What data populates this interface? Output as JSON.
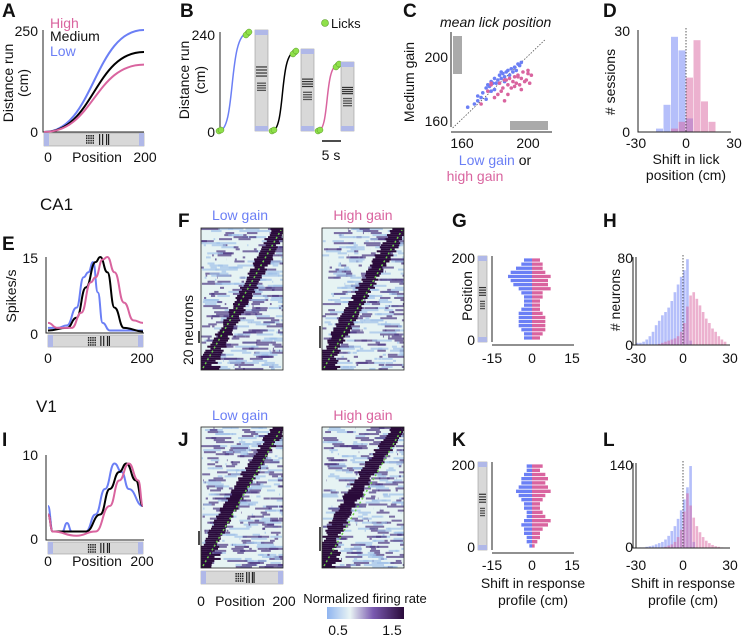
{
  "colors": {
    "low": "#6b7ff5",
    "medium": "#000000",
    "high": "#d9649f",
    "lick": "#8fe04a",
    "track": "#d8d8d8",
    "heat_dark": "#2a0a3a",
    "heat_light": "#e6f3f3"
  },
  "panels": {
    "A": {
      "label": "A",
      "legend": [
        "High",
        "Medium",
        "Low"
      ],
      "ylabel1": "Distance run",
      "ylabel2": "(cm)",
      "yticks": [
        "250",
        "0"
      ],
      "xticks": [
        "0",
        "200"
      ],
      "xlabel": "Position"
    },
    "B": {
      "label": "B",
      "legend": "Licks",
      "ylabel1": "Distance run",
      "ylabel2": "(cm)",
      "yticks": [
        "240",
        "0"
      ],
      "scalebar": "5 s"
    },
    "C": {
      "label": "C",
      "title": "mean lick position",
      "ylabel": "Medium gain",
      "yticks": [
        "200",
        "160"
      ],
      "xticks": [
        "160",
        "200"
      ],
      "xlabel_low": "Low gain",
      "xlabel_or": " or",
      "xlabel_high": "high gain"
    },
    "D": {
      "label": "D",
      "ylabel": "# sessions",
      "yticks": [
        "30",
        "0"
      ],
      "xticks": [
        "-30",
        "0",
        "30"
      ],
      "xlabel1": "Shift in lick",
      "xlabel2": "position (cm)"
    },
    "E": {
      "label": "E",
      "region": "CA1",
      "ylabel": "Spikes/s",
      "yticks": [
        "15",
        "0"
      ],
      "xticks": [
        "0",
        "200"
      ]
    },
    "F": {
      "label": "F",
      "title_low": "Low gain",
      "title_high": "High gain",
      "ylabel": "20 neurons"
    },
    "G": {
      "label": "G",
      "ylabel": "Position",
      "yticks": [
        "200",
        "0"
      ],
      "xticks": [
        "-15",
        "0",
        "15"
      ]
    },
    "H": {
      "label": "H",
      "ylabel": "# neurons",
      "yticks": [
        "80",
        "0"
      ],
      "xticks": [
        "-30",
        "0",
        "30"
      ]
    },
    "I": {
      "label": "I",
      "region": "V1",
      "yticks": [
        "10",
        "0"
      ],
      "xticks": [
        "0",
        "200"
      ],
      "xlabel": "Position"
    },
    "J": {
      "label": "J",
      "title_low": "Low gain",
      "title_high": "High gain",
      "xticks": [
        "0",
        "200"
      ],
      "xlabel": "Position",
      "colorbar_label": "Normalized firing rate",
      "colorbar_ticks": [
        "0.5",
        "1.5"
      ]
    },
    "K": {
      "label": "K",
      "yticks": [
        "200",
        "0"
      ],
      "xticks": [
        "-15",
        "0",
        "15"
      ],
      "xlabel1": "Shift in response",
      "xlabel2": "profile (cm)"
    },
    "L": {
      "label": "L",
      "yticks": [
        "140",
        "0"
      ],
      "xticks": [
        "-30",
        "0",
        "30"
      ],
      "xlabel1": "Shift in response",
      "xlabel2": "profile (cm)"
    }
  },
  "chart_data": [
    {
      "panel": "A",
      "type": "line",
      "xlabel": "Position",
      "ylabel": "Distance run (cm)",
      "xlim": [
        0,
        200
      ],
      "ylim": [
        0,
        250
      ],
      "series": [
        {
          "name": "Low",
          "x": [
            0,
            200
          ],
          "y": [
            0,
            250
          ]
        },
        {
          "name": "Medium",
          "x": [
            0,
            200
          ],
          "y": [
            0,
            196
          ]
        },
        {
          "name": "High",
          "x": [
            0,
            200
          ],
          "y": [
            0,
            165
          ]
        }
      ]
    },
    {
      "panel": "B",
      "type": "line",
      "ylabel": "Distance run (cm)",
      "ylim": [
        0,
        240
      ],
      "series": [
        {
          "name": "Low",
          "end": 240
        },
        {
          "name": "Medium",
          "end": 190
        },
        {
          "name": "High",
          "end": 160
        }
      ]
    },
    {
      "panel": "C",
      "type": "scatter",
      "title": "mean lick position",
      "xlabel": "Low gain or high gain",
      "ylabel": "Medium gain",
      "xlim": [
        152,
        212
      ],
      "ylim": [
        156,
        212
      ],
      "series": [
        {
          "name": "Low gain",
          "x": [
            164,
            168,
            170,
            172,
            173,
            175,
            176,
            177,
            178,
            179,
            180,
            181,
            182,
            183,
            184,
            185,
            186,
            187,
            188,
            189,
            190,
            191,
            192,
            193,
            194,
            195,
            196,
            175,
            180,
            186,
            170,
            178,
            184
          ],
          "y": [
            168,
            170,
            172,
            174,
            177,
            180,
            182,
            181,
            184,
            183,
            186,
            183,
            185,
            188,
            186,
            189,
            187,
            190,
            191,
            188,
            192,
            190,
            193,
            191,
            195,
            194,
            196,
            173,
            179,
            184,
            175,
            178,
            190
          ]
        },
        {
          "name": "High gain",
          "x": [
            172,
            176,
            178,
            180,
            182,
            183,
            185,
            186,
            187,
            188,
            189,
            190,
            191,
            192,
            193,
            194,
            195,
            196,
            197,
            198,
            199,
            200,
            201,
            202,
            184,
            188,
            192,
            196,
            200,
            178,
            186,
            194
          ],
          "y": [
            170,
            178,
            182,
            174,
            176,
            183,
            180,
            172,
            185,
            182,
            186,
            180,
            184,
            187,
            183,
            188,
            182,
            186,
            190,
            184,
            185,
            191,
            183,
            188,
            178,
            176,
            181,
            179,
            189,
            183,
            185,
            187
          ]
        }
      ]
    },
    {
      "panel": "D",
      "type": "bar",
      "xlabel": "Shift in lick position (cm)",
      "ylabel": "# sessions",
      "xlim": [
        -30,
        30
      ],
      "ylim": [
        0,
        30
      ],
      "bin_edges": [
        -20,
        -15,
        -10,
        -5,
        0,
        5,
        10,
        15,
        20
      ],
      "series": [
        {
          "name": "Low gain",
          "values": [
            1,
            8,
            28,
            24,
            4,
            0,
            0,
            0
          ]
        },
        {
          "name": "High gain",
          "values": [
            0,
            0,
            1,
            3,
            16,
            27,
            9,
            3
          ]
        }
      ]
    },
    {
      "panel": "E",
      "type": "line",
      "title": "CA1",
      "ylabel": "Spikes/s",
      "xlim": [
        0,
        200
      ],
      "ylim": [
        0,
        15
      ],
      "series": [
        {
          "name": "Low",
          "x": [
            0,
            20,
            40,
            60,
            75,
            85,
            95,
            105,
            115,
            130,
            200
          ],
          "y": [
            1,
            1,
            1.5,
            5,
            11,
            12,
            14,
            8,
            2,
            0.5,
            0.5
          ]
        },
        {
          "name": "Medium",
          "x": [
            0,
            40,
            60,
            80,
            100,
            110,
            125,
            140,
            160,
            200
          ],
          "y": [
            0.5,
            1,
            3,
            9,
            14,
            15,
            12,
            5,
            1,
            0.3
          ]
        },
        {
          "name": "High",
          "x": [
            0,
            20,
            50,
            70,
            90,
            100,
            115,
            125,
            140,
            160,
            180,
            200
          ],
          "y": [
            2,
            1,
            1,
            4,
            10,
            11,
            14.5,
            15,
            12,
            6,
            2.5,
            2
          ]
        }
      ]
    },
    {
      "panel": "G",
      "type": "bar",
      "orientation": "horizontal",
      "ylabel": "Position",
      "ylim": [
        0,
        200
      ],
      "xlim": [
        -15,
        15
      ],
      "series": [
        {
          "name": "Low gain",
          "values": [
            -3,
            -4,
            -6,
            -8,
            -9,
            -8,
            -7,
            -5,
            -4,
            -3,
            -3,
            -3,
            -4,
            -5,
            -5,
            -5,
            -5,
            -4,
            -3,
            -3
          ]
        },
        {
          "name": "High gain",
          "values": [
            3,
            4,
            4,
            5,
            7,
            6,
            6,
            7,
            4,
            4,
            3,
            3,
            3,
            4,
            5,
            5,
            5,
            5,
            4,
            3
          ]
        }
      ]
    },
    {
      "panel": "H",
      "type": "bar",
      "ylabel": "# neurons",
      "xlim": [
        -30,
        30
      ],
      "ylim": [
        0,
        80
      ],
      "bin_start": -30,
      "bin_width": 2,
      "series": [
        {
          "name": "Low gain",
          "values": [
            2,
            2,
            3,
            5,
            8,
            12,
            18,
            22,
            27,
            30,
            34,
            40,
            48,
            55,
            62,
            68,
            78,
            4,
            0,
            0,
            0,
            0,
            0,
            0,
            0,
            0,
            0,
            0,
            0,
            0
          ]
        },
        {
          "name": "High gain",
          "values": [
            0,
            0,
            0,
            0,
            0,
            0,
            0,
            1,
            2,
            3,
            4,
            5,
            6,
            8,
            12,
            20,
            35,
            45,
            48,
            42,
            36,
            30,
            24,
            20,
            15,
            12,
            8,
            5,
            3,
            0
          ]
        }
      ]
    },
    {
      "panel": "I",
      "type": "line",
      "title": "V1",
      "xlabel": "Position",
      "xlim": [
        0,
        200
      ],
      "ylim": [
        0,
        10
      ],
      "series": [
        {
          "name": "Low",
          "x": [
            0,
            10,
            30,
            40,
            50,
            80,
            100,
            120,
            140,
            155,
            170,
            200
          ],
          "y": [
            4,
            1,
            1,
            2,
            1,
            1,
            3,
            6,
            9,
            8,
            6,
            4
          ]
        },
        {
          "name": "Medium",
          "x": [
            0,
            10,
            40,
            80,
            110,
            130,
            150,
            165,
            185,
            200
          ],
          "y": [
            3,
            1,
            1,
            1,
            3,
            6,
            8,
            9,
            7,
            4
          ]
        },
        {
          "name": "High",
          "x": [
            0,
            10,
            60,
            100,
            130,
            150,
            170,
            190,
            200
          ],
          "y": [
            3,
            1,
            0.5,
            1,
            4,
            7,
            9,
            7,
            4
          ]
        }
      ]
    },
    {
      "panel": "K",
      "type": "bar",
      "orientation": "horizontal",
      "xlabel": "Shift in response profile (cm)",
      "ylim": [
        0,
        200
      ],
      "xlim": [
        -15,
        15
      ],
      "series": [
        {
          "name": "Low gain",
          "values": [
            -2,
            -2,
            -3,
            -4,
            -4,
            -5,
            -6,
            -5,
            -4,
            -3,
            -3,
            -2,
            -2,
            -3,
            -4,
            -3,
            -3,
            -2,
            -2,
            -1
          ]
        },
        {
          "name": "High gain",
          "values": [
            4,
            3,
            5,
            6,
            5,
            6,
            7,
            5,
            4,
            3,
            3,
            4,
            5,
            7,
            6,
            4,
            3,
            3,
            2,
            1
          ]
        }
      ]
    },
    {
      "panel": "L",
      "type": "bar",
      "xlabel": "Shift in response profile (cm)",
      "xlim": [
        -30,
        30
      ],
      "ylim": [
        0,
        140
      ],
      "bin_start": -30,
      "bin_width": 2,
      "series": [
        {
          "name": "Low gain",
          "values": [
            0,
            1,
            1,
            2,
            3,
            4,
            6,
            8,
            10,
            14,
            20,
            28,
            36,
            48,
            62,
            80,
            100,
            135,
            10,
            0,
            0,
            0,
            0,
            0,
            0,
            0,
            0,
            0,
            0,
            0
          ]
        },
        {
          "name": "High gain",
          "values": [
            0,
            0,
            0,
            0,
            0,
            0,
            0,
            0,
            1,
            2,
            4,
            6,
            10,
            18,
            30,
            60,
            90,
            70,
            50,
            36,
            26,
            18,
            12,
            8,
            5,
            3,
            2,
            1,
            0,
            0
          ]
        }
      ]
    }
  ]
}
